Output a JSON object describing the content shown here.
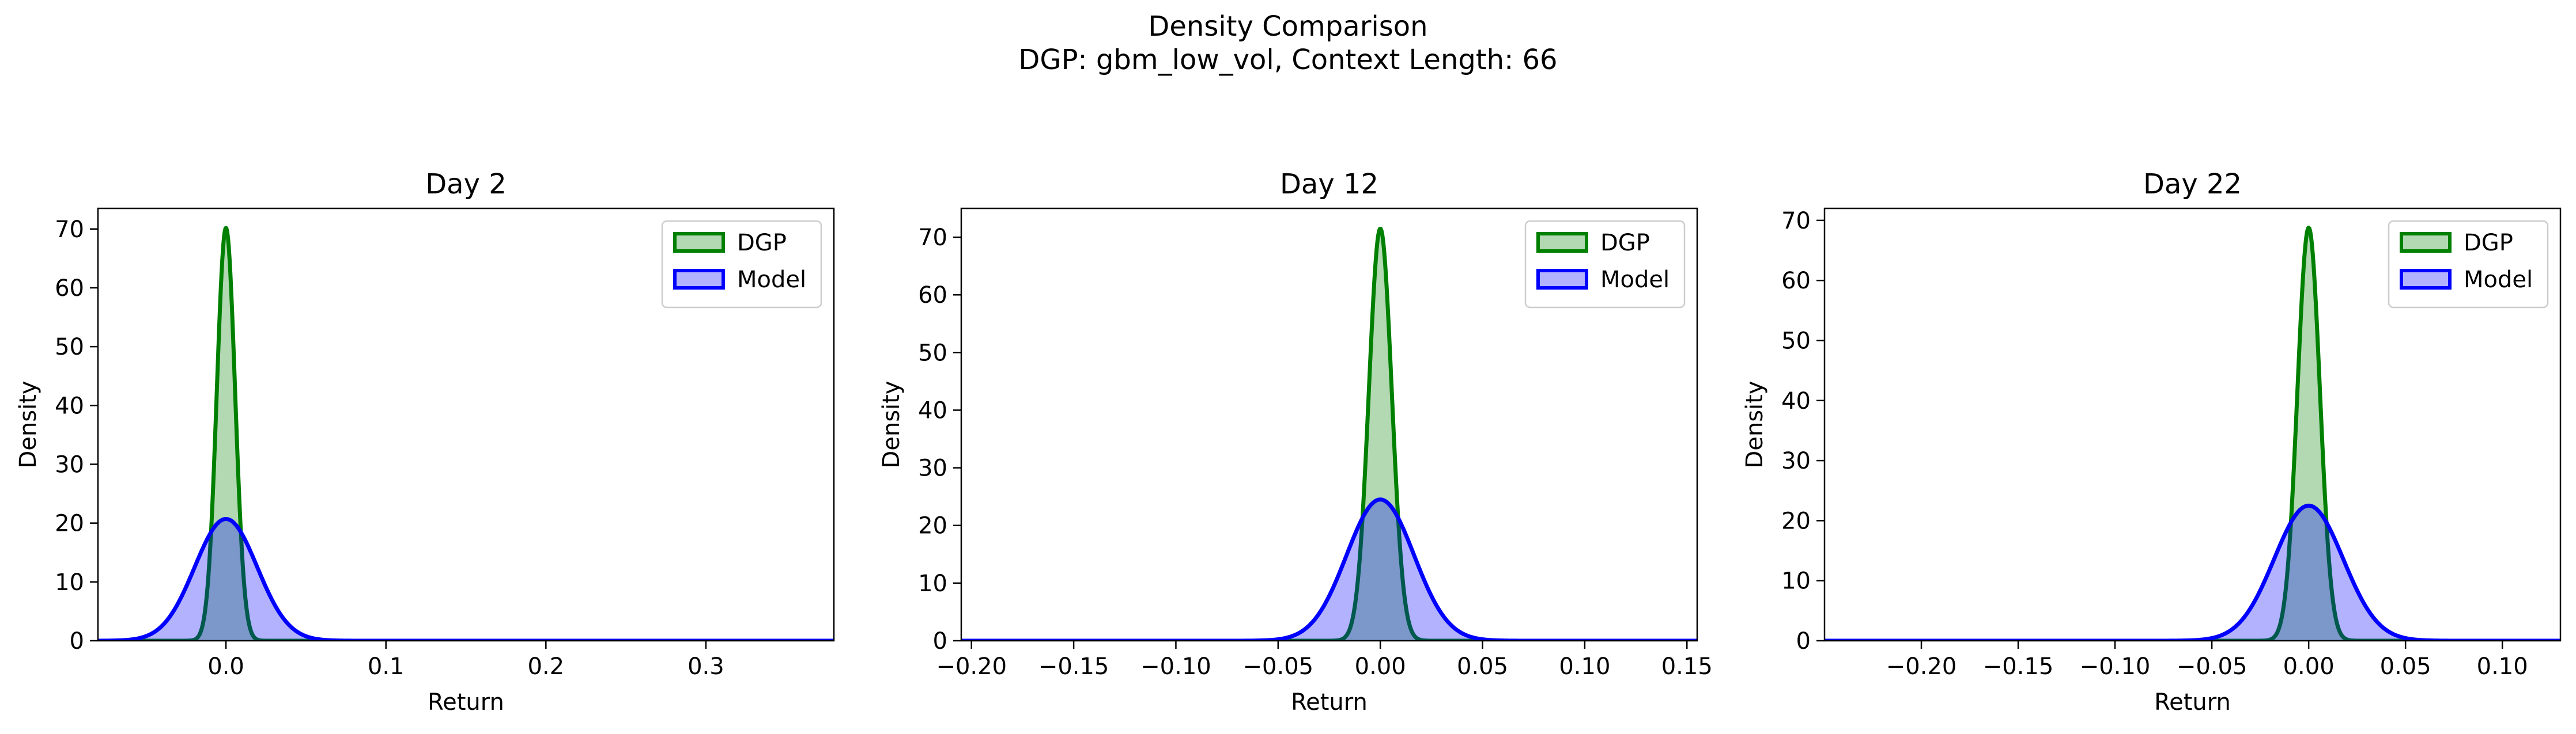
{
  "figure": {
    "title_line1": "Density Comparison",
    "title_line2": "DGP: gbm_low_vol, Context Length: 66",
    "colors": {
      "dgp": "#008000",
      "model": "#0000ff",
      "axis": "#000000",
      "background": "#ffffff"
    }
  },
  "chart_data": [
    {
      "type": "area",
      "title": "Day 2",
      "xlabel": "Return",
      "ylabel": "Density",
      "xlim": [
        -0.08,
        0.38
      ],
      "ylim": [
        0,
        73.5
      ],
      "xticks": [
        0.0,
        0.1,
        0.2,
        0.3
      ],
      "xtick_labels": [
        "0.0",
        "0.1",
        "0.2",
        "0.3"
      ],
      "yticks": [
        0,
        10,
        20,
        30,
        40,
        50,
        60,
        70
      ],
      "ytick_labels": [
        "0",
        "10",
        "20",
        "30",
        "40",
        "50",
        "60",
        "70"
      ],
      "legend_position": "top-right",
      "series": [
        {
          "name": "DGP",
          "distribution": "gaussian",
          "mean": 0.0,
          "std": 0.0057,
          "peak": 70.2
        },
        {
          "name": "Model",
          "distribution": "gaussian",
          "mean": 0.0,
          "std": 0.0195,
          "peak": 20.7
        }
      ]
    },
    {
      "type": "area",
      "title": "Day 12",
      "xlabel": "Return",
      "ylabel": "Density",
      "xlim": [
        -0.205,
        0.155
      ],
      "ylim": [
        0,
        75
      ],
      "xticks": [
        -0.2,
        -0.15,
        -0.1,
        -0.05,
        0.0,
        0.05,
        0.1,
        0.15
      ],
      "xtick_labels": [
        "−0.20",
        "−0.15",
        "−0.10",
        "−0.05",
        "0.00",
        "0.05",
        "0.10",
        "0.15"
      ],
      "yticks": [
        0,
        10,
        20,
        30,
        40,
        50,
        60,
        70
      ],
      "ytick_labels": [
        "0",
        "10",
        "20",
        "30",
        "40",
        "50",
        "60",
        "70"
      ],
      "legend_position": "top-right",
      "series": [
        {
          "name": "DGP",
          "distribution": "gaussian",
          "mean": 0.0,
          "std": 0.0056,
          "peak": 71.5
        },
        {
          "name": "Model",
          "distribution": "gaussian",
          "mean": 0.0,
          "std": 0.0165,
          "peak": 24.5
        }
      ]
    },
    {
      "type": "area",
      "title": "Day 22",
      "xlabel": "Return",
      "ylabel": "Density",
      "xlim": [
        -0.25,
        0.13
      ],
      "ylim": [
        0,
        72
      ],
      "xticks": [
        -0.2,
        -0.15,
        -0.1,
        -0.05,
        0.0,
        0.05,
        0.1
      ],
      "xtick_labels": [
        "−0.20",
        "−0.15",
        "−0.10",
        "−0.05",
        "0.00",
        "0.05",
        "0.10"
      ],
      "yticks": [
        0,
        10,
        20,
        30,
        40,
        50,
        60,
        70
      ],
      "ytick_labels": [
        "0",
        "10",
        "20",
        "30",
        "40",
        "50",
        "60",
        "70"
      ],
      "legend_position": "top-right",
      "series": [
        {
          "name": "DGP",
          "distribution": "gaussian",
          "mean": 0.0,
          "std": 0.0058,
          "peak": 68.8
        },
        {
          "name": "Model",
          "distribution": "gaussian",
          "mean": 0.0,
          "std": 0.0178,
          "peak": 22.5
        }
      ]
    }
  ]
}
